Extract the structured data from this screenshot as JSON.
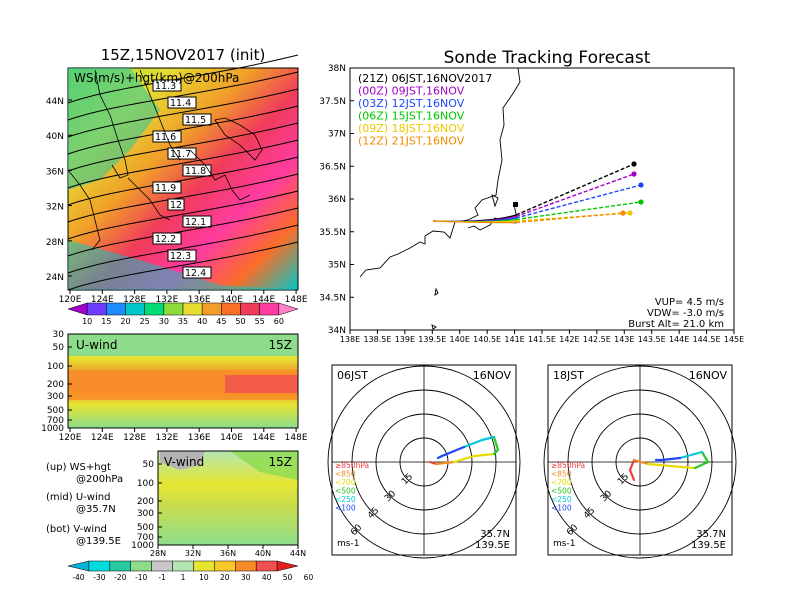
{
  "weather_map": {
    "title": "15Z,15NOV2017 (init)",
    "field_label": "WS(m/s)+hgt(km)@200hPa",
    "lat_ticks": [
      "44N",
      "40N",
      "36N",
      "32N",
      "28N",
      "24N"
    ],
    "lon_ticks": [
      "120E",
      "124E",
      "128E",
      "132E",
      "136E",
      "140E",
      "144E",
      "148E"
    ],
    "contour_labels": [
      "11.3",
      "11.4",
      "11.5",
      "11.6",
      "11.7",
      "11.8",
      "11.9",
      "12",
      "12.1",
      "12.2",
      "12.3",
      "12.4"
    ],
    "colorbar_ticks": [
      "10",
      "15",
      "20",
      "25",
      "30",
      "35",
      "40",
      "45",
      "50",
      "55",
      "60"
    ],
    "colorbar_colors": [
      "#a000c8",
      "#6e3cff",
      "#1e8cff",
      "#00c8c8",
      "#00dc78",
      "#8cdc3c",
      "#e6dc32",
      "#f0a028",
      "#fa6e28",
      "#f03c5a",
      "#ff3ca0",
      "#ff82c8"
    ]
  },
  "uwind_panel": {
    "label": "U-wind",
    "time": "15Z",
    "y_ticks": [
      "30",
      "50",
      "100",
      "200",
      "300",
      "500",
      "700",
      "1000"
    ],
    "lon_ticks": [
      "120E",
      "124E",
      "128E",
      "132E",
      "136E",
      "140E",
      "144E",
      "148E"
    ]
  },
  "vwind_panel": {
    "label": "V-wind",
    "time": "15Z",
    "y_ticks": [
      "50",
      "100",
      "200",
      "300",
      "500",
      "700",
      "1000"
    ],
    "lat_ticks": [
      "28N",
      "32N",
      "36N",
      "40N",
      "44N"
    ]
  },
  "legend_notes": {
    "up_line1": "(up) WS+hgt",
    "up_line2": "@200hPa",
    "mid_line1": "(mid) U-wind",
    "mid_line2": "@35.7N",
    "bot_line1": "(bot) V-wind",
    "bot_line2": "@139.5E"
  },
  "bottom_colorbar": {
    "ticks": [
      "-40",
      "-30",
      "-20",
      "-10",
      "-1",
      "1",
      "10",
      "20",
      "30",
      "40",
      "50",
      "60"
    ],
    "colors": [
      "#00b4dc",
      "#00dcdc",
      "#28c8a0",
      "#8cdc8c",
      "#c8c8c8",
      "#b4e6b4",
      "#e6e632",
      "#fac828",
      "#fa8c28",
      "#f05050",
      "#e61e1e"
    ]
  },
  "tracking": {
    "title": "Sonde Tracking Forecast",
    "lat_ticks": [
      "38N",
      "37.5N",
      "37N",
      "36.5N",
      "36N",
      "35.5N",
      "35N",
      "34.5N",
      "34N"
    ],
    "lon_ticks": [
      "138E",
      "138.5E",
      "139E",
      "139.5E",
      "140E",
      "140.5E",
      "141E",
      "141.5E",
      "142E",
      "142.5E",
      "143E",
      "143.5E",
      "144E",
      "144.5E",
      "145E"
    ],
    "forecasts": [
      {
        "label": "(21Z) 06JST,16NOV2017",
        "color": "#000000"
      },
      {
        "label": "(00Z) 09JST,16NOV",
        "color": "#a000c8"
      },
      {
        "label": "(03Z) 12JST,16NOV",
        "color": "#1e46ff"
      },
      {
        "label": "(06Z) 15JST,16NOV",
        "color": "#00c800"
      },
      {
        "label": "(09Z) 18JST,16NOV",
        "color": "#f0c800"
      },
      {
        "label": "(12Z) 21JST,16NOV",
        "color": "#f08c00"
      }
    ],
    "vup": "VUP= 4.5 m/s",
    "vdw": "VDW= -3.0 m/s",
    "burst": "Burst Alt= 21.0 km"
  },
  "hodo_left": {
    "time": "06JST",
    "date": "16NOV",
    "lat": "35.7N",
    "lon": "139.5E",
    "unit": "ms-1",
    "ring_labels": [
      "15",
      "30",
      "45",
      "60"
    ],
    "levels": [
      {
        "label": "≥850hPa",
        "color": "#f03c3c"
      },
      {
        "label": "<850",
        "color": "#f08c28"
      },
      {
        "label": "<700",
        "color": "#e6dc00"
      },
      {
        "label": "<500",
        "color": "#28c828"
      },
      {
        "label": "<250",
        "color": "#00c8dc"
      },
      {
        "label": "<100",
        "color": "#1e46ff"
      }
    ]
  },
  "hodo_right": {
    "time": "18JST",
    "date": "16NOV",
    "lat": "35.7N",
    "lon": "139.5E",
    "unit": "ms-1",
    "ring_labels": [
      "15",
      "30",
      "45",
      "60"
    ],
    "levels": [
      {
        "label": "≥850hPa",
        "color": "#f03c3c"
      },
      {
        "label": "<850",
        "color": "#f08c28"
      },
      {
        "label": "<700",
        "color": "#e6dc00"
      },
      {
        "label": "<500",
        "color": "#28c828"
      },
      {
        "label": "<250",
        "color": "#00c8dc"
      },
      {
        "label": "<100",
        "color": "#1e46ff"
      }
    ]
  }
}
